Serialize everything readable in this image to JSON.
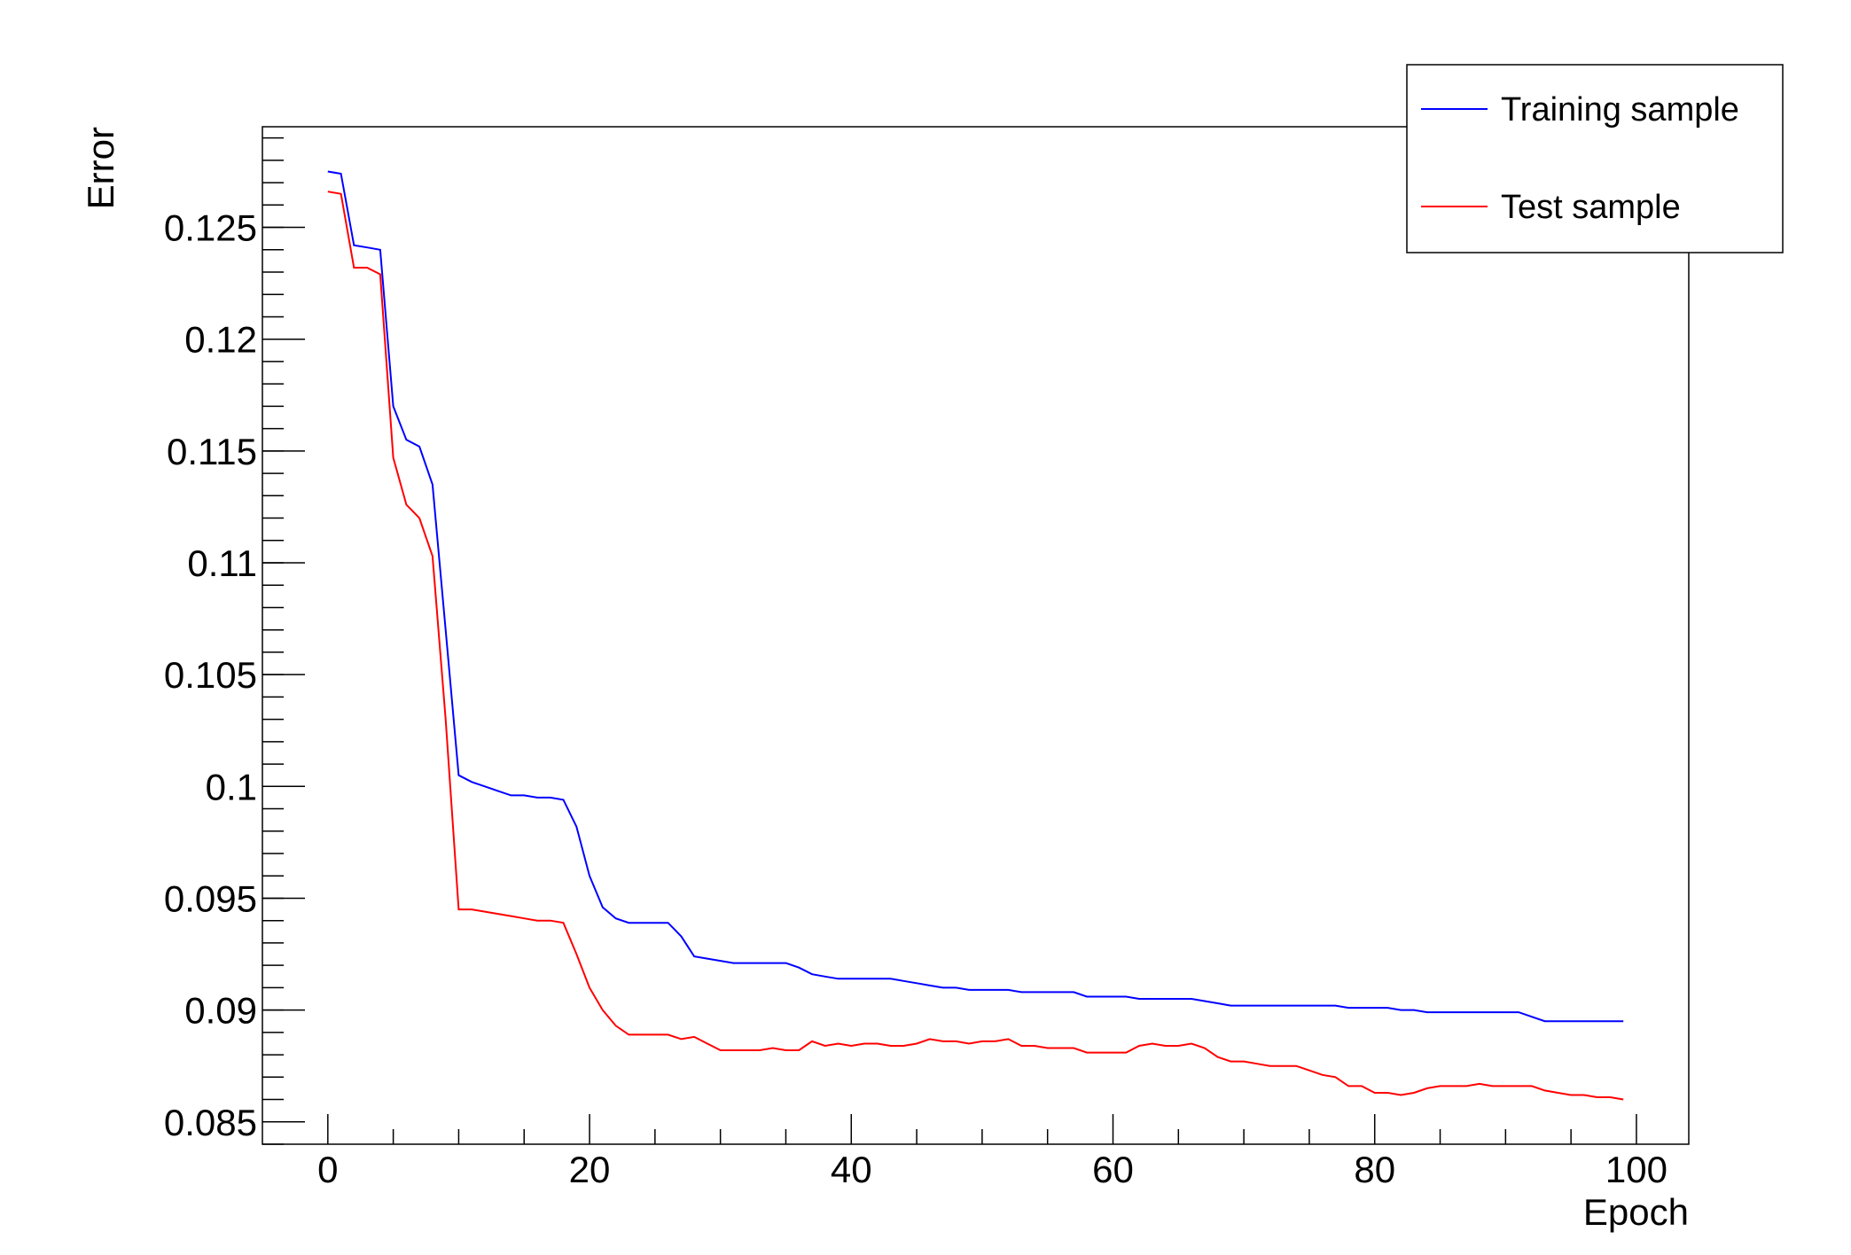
{
  "chart_data": {
    "type": "line",
    "title": "",
    "xlabel": "Epoch",
    "ylabel": "Error",
    "xlim": [
      -5,
      104
    ],
    "ylim": [
      0.084,
      0.1295
    ],
    "grid": false,
    "legend_position": "top-right",
    "x_ticks": [
      0,
      20,
      40,
      60,
      80,
      100
    ],
    "x_tick_labels": [
      "0",
      "20",
      "40",
      "60",
      "80",
      "100"
    ],
    "y_ticks": [
      0.085,
      0.09,
      0.095,
      0.1,
      0.105,
      0.11,
      0.115,
      0.12,
      0.125
    ],
    "y_tick_labels": [
      "0.085",
      "0.09",
      "0.095",
      "0.1",
      "0.105",
      "0.11",
      "0.115",
      "0.12",
      "0.125"
    ],
    "series": [
      {
        "name": "Training sample",
        "color": "#0000ff",
        "x": [
          0,
          1,
          2,
          3,
          4,
          5,
          6,
          7,
          8,
          9,
          10,
          11,
          12,
          13,
          14,
          15,
          16,
          17,
          18,
          19,
          20,
          21,
          22,
          23,
          24,
          25,
          26,
          27,
          28,
          29,
          30,
          31,
          32,
          33,
          34,
          35,
          36,
          37,
          38,
          39,
          40,
          41,
          42,
          43,
          44,
          45,
          46,
          47,
          48,
          49,
          50,
          51,
          52,
          53,
          54,
          55,
          56,
          57,
          58,
          59,
          60,
          61,
          62,
          63,
          64,
          65,
          66,
          67,
          68,
          69,
          70,
          71,
          72,
          73,
          74,
          75,
          76,
          77,
          78,
          79,
          80,
          81,
          82,
          83,
          84,
          85,
          86,
          87,
          88,
          89,
          90,
          91,
          92,
          93,
          94,
          95,
          96,
          97,
          98,
          99
        ],
        "y": [
          0.1275,
          0.1274,
          0.1242,
          0.1241,
          0.124,
          0.117,
          0.1155,
          0.1152,
          0.1135,
          0.107,
          0.1005,
          0.1002,
          0.1,
          0.0998,
          0.0996,
          0.0996,
          0.0995,
          0.0995,
          0.0994,
          0.0982,
          0.096,
          0.0946,
          0.0941,
          0.0939,
          0.0939,
          0.0939,
          0.0939,
          0.0933,
          0.0924,
          0.0923,
          0.0922,
          0.0921,
          0.0921,
          0.0921,
          0.0921,
          0.0921,
          0.0919,
          0.0916,
          0.0915,
          0.0914,
          0.0914,
          0.0914,
          0.0914,
          0.0914,
          0.0913,
          0.0912,
          0.0911,
          0.091,
          0.091,
          0.0909,
          0.0909,
          0.0909,
          0.0909,
          0.0908,
          0.0908,
          0.0908,
          0.0908,
          0.0908,
          0.0906,
          0.0906,
          0.0906,
          0.0906,
          0.0905,
          0.0905,
          0.0905,
          0.0905,
          0.0905,
          0.0904,
          0.0903,
          0.0902,
          0.0902,
          0.0902,
          0.0902,
          0.0902,
          0.0902,
          0.0902,
          0.0902,
          0.0902,
          0.0901,
          0.0901,
          0.0901,
          0.0901,
          0.09,
          0.09,
          0.0899,
          0.0899,
          0.0899,
          0.0899,
          0.0899,
          0.0899,
          0.0899,
          0.0899,
          0.0897,
          0.0895,
          0.0895,
          0.0895,
          0.0895,
          0.0895,
          0.0895,
          0.0895
        ]
      },
      {
        "name": "Test sample",
        "color": "#ff0000",
        "x": [
          0,
          1,
          2,
          3,
          4,
          5,
          6,
          7,
          8,
          9,
          10,
          11,
          12,
          13,
          14,
          15,
          16,
          17,
          18,
          19,
          20,
          21,
          22,
          23,
          24,
          25,
          26,
          27,
          28,
          29,
          30,
          31,
          32,
          33,
          34,
          35,
          36,
          37,
          38,
          39,
          40,
          41,
          42,
          43,
          44,
          45,
          46,
          47,
          48,
          49,
          50,
          51,
          52,
          53,
          54,
          55,
          56,
          57,
          58,
          59,
          60,
          61,
          62,
          63,
          64,
          65,
          66,
          67,
          68,
          69,
          70,
          71,
          72,
          73,
          74,
          75,
          76,
          77,
          78,
          79,
          80,
          81,
          82,
          83,
          84,
          85,
          86,
          87,
          88,
          89,
          90,
          91,
          92,
          93,
          94,
          95,
          96,
          97,
          98,
          99
        ],
        "y": [
          0.1266,
          0.1265,
          0.1232,
          0.1232,
          0.1229,
          0.1147,
          0.1126,
          0.112,
          0.1103,
          0.103,
          0.0945,
          0.0945,
          0.0944,
          0.0943,
          0.0942,
          0.0941,
          0.094,
          0.094,
          0.0939,
          0.0925,
          0.091,
          0.09,
          0.0893,
          0.0889,
          0.0889,
          0.0889,
          0.0889,
          0.0887,
          0.0888,
          0.0885,
          0.0882,
          0.0882,
          0.0882,
          0.0882,
          0.0883,
          0.0882,
          0.0882,
          0.0886,
          0.0884,
          0.0885,
          0.0884,
          0.0885,
          0.0885,
          0.0884,
          0.0884,
          0.0885,
          0.0887,
          0.0886,
          0.0886,
          0.0885,
          0.0886,
          0.0886,
          0.0887,
          0.0884,
          0.0884,
          0.0883,
          0.0883,
          0.0883,
          0.0881,
          0.0881,
          0.0881,
          0.0881,
          0.0884,
          0.0885,
          0.0884,
          0.0884,
          0.0885,
          0.0883,
          0.0879,
          0.0877,
          0.0877,
          0.0876,
          0.0875,
          0.0875,
          0.0875,
          0.0873,
          0.0871,
          0.087,
          0.0866,
          0.0866,
          0.0863,
          0.0863,
          0.0862,
          0.0863,
          0.0865,
          0.0866,
          0.0866,
          0.0866,
          0.0867,
          0.0866,
          0.0866,
          0.0866,
          0.0866,
          0.0864,
          0.0863,
          0.0862,
          0.0862,
          0.0861,
          0.0861,
          0.086
        ]
      }
    ]
  }
}
